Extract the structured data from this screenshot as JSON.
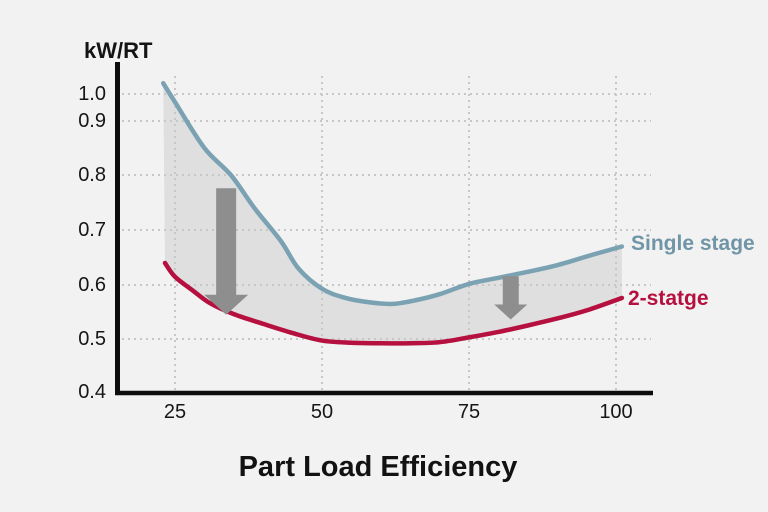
{
  "chart_data": {
    "type": "line",
    "title": "Part Load Efficiency",
    "ylabel": "kW/RT",
    "xlabel": "",
    "x_ticks": [
      25,
      50,
      75,
      100
    ],
    "y_ticks": [
      0.4,
      0.5,
      0.6,
      0.7,
      0.8,
      0.9,
      1.0
    ],
    "xlim": [
      15,
      106
    ],
    "ylim": [
      0.4,
      1.05
    ],
    "grid": "dotted",
    "legend_position": "right-of-line-ends",
    "series": [
      {
        "name": "Single stage",
        "color": "#7ba2b3",
        "label_color": "#7095a7",
        "points": [
          [
            23,
            1.04
          ],
          [
            25,
            0.97
          ],
          [
            30,
            0.85
          ],
          [
            34.5,
            0.8
          ],
          [
            38.5,
            0.74
          ],
          [
            43,
            0.68
          ],
          [
            46,
            0.63
          ],
          [
            50,
            0.593
          ],
          [
            54,
            0.576
          ],
          [
            58,
            0.568
          ],
          [
            62,
            0.565
          ],
          [
            66,
            0.572
          ],
          [
            70,
            0.583
          ],
          [
            75,
            0.602
          ],
          [
            80,
            0.613
          ],
          [
            85,
            0.624
          ],
          [
            90,
            0.636
          ],
          [
            96,
            0.655
          ],
          [
            101,
            0.67
          ]
        ]
      },
      {
        "name": "2-statge",
        "color": "#b5103f",
        "label_color": "#b5103f",
        "points": [
          [
            23.3,
            0.64
          ],
          [
            25,
            0.615
          ],
          [
            28,
            0.59
          ],
          [
            31,
            0.566
          ],
          [
            35,
            0.546
          ],
          [
            40,
            0.528
          ],
          [
            45,
            0.511
          ],
          [
            50,
            0.497
          ],
          [
            55,
            0.493
          ],
          [
            60,
            0.492
          ],
          [
            65,
            0.492
          ],
          [
            70,
            0.494
          ],
          [
            75,
            0.503
          ],
          [
            80,
            0.513
          ],
          [
            85,
            0.525
          ],
          [
            90,
            0.538
          ],
          [
            95,
            0.553
          ],
          [
            101,
            0.576
          ]
        ]
      }
    ],
    "band": {
      "between": [
        "Single stage",
        "2-statge"
      ],
      "fill": "rgba(100,100,110,0.13)"
    },
    "arrows": [
      {
        "x": 33.7,
        "y_from": 0.776,
        "y_to": 0.545
      },
      {
        "x": 82.1,
        "y_from": 0.616,
        "y_to": 0.536
      }
    ]
  },
  "colors": {
    "background": "#f2f2f2",
    "axis": "#0d0d0d",
    "grid": "#c7c7c7",
    "arrow": "#8e8e8e",
    "tick_text": "#161616",
    "title_text": "#121212"
  }
}
